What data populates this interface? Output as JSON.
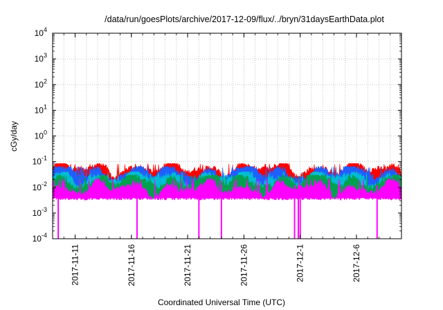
{
  "chart_data": {
    "type": "line",
    "title": "/data/run/goesPlots/archive/2017-12-09/flux/../bryn/31daysEarthData.plot",
    "xlabel": "Coordinated Universal Time (UTC)",
    "ylabel": "cGy/day",
    "yscale": "log",
    "ylim": [
      0.0001,
      10000
    ],
    "xlim": [
      "2017-11-09",
      "2017-12-10"
    ],
    "grid": true,
    "y_ticks": [
      {
        "base": "10",
        "exp": "-4"
      },
      {
        "base": "10",
        "exp": "-3"
      },
      {
        "base": "10",
        "exp": "-2"
      },
      {
        "base": "10",
        "exp": "-1"
      },
      {
        "base": "10",
        "exp": "0"
      },
      {
        "base": "10",
        "exp": "1"
      },
      {
        "base": "10",
        "exp": "2"
      },
      {
        "base": "10",
        "exp": "3"
      },
      {
        "base": "10",
        "exp": "4"
      }
    ],
    "x_ticks": [
      "2017-11-11",
      "2017-11-16",
      "2017-11-21",
      "2017-11-26",
      "2017-12-1",
      "2017-12-6"
    ],
    "series": [
      {
        "color": "#ff0000",
        "typical": 0.052,
        "max": 0.085
      },
      {
        "color": "#1f5fff",
        "typical": 0.038,
        "max": 0.065
      },
      {
        "color": "#00bcd4",
        "typical": 0.024,
        "max": 0.04
      },
      {
        "color": "#00a050",
        "typical": 0.018,
        "max": 0.03
      },
      {
        "color": "#ff00ff",
        "typical": 0.009,
        "max": 0.022,
        "min": 0.0035
      }
    ],
    "dropouts": [
      "2017-11-09 12:00",
      "2017-11-16 12:00",
      "2017-11-22 00:00",
      "2017-11-24 00:00",
      "2017-11-30 12:00",
      "2017-11-30 20:00",
      "2017-12-01 00:00",
      "2017-12-07 20:00"
    ]
  }
}
